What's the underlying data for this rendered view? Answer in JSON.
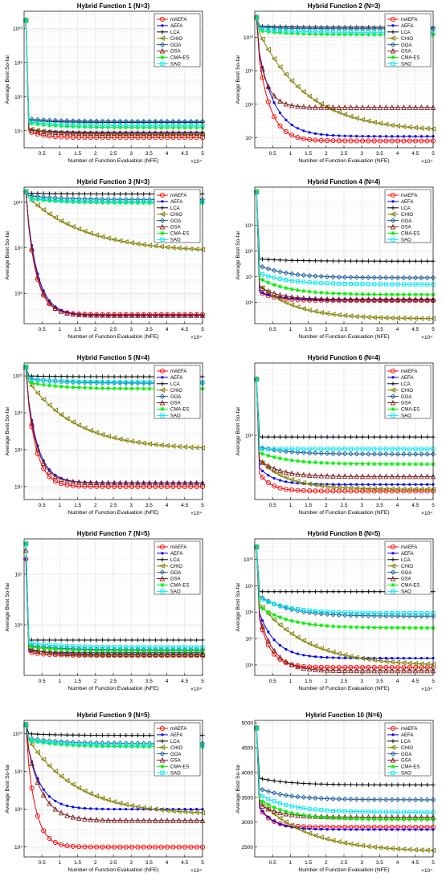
{
  "figure": {
    "algorithms": [
      {
        "name": "mAEFA",
        "color": "#ff0000",
        "marker": "circle"
      },
      {
        "name": "AEFA",
        "color": "#0000ff",
        "marker": "dot"
      },
      {
        "name": "LCA",
        "color": "#000000",
        "marker": "plus"
      },
      {
        "name": "CHIO",
        "color": "#808000",
        "marker": "triangle-left"
      },
      {
        "name": "GOA",
        "color": "#1f5f9f",
        "marker": "diamond"
      },
      {
        "name": "GSA",
        "color": "#7f1f1f",
        "marker": "triangle-up"
      },
      {
        "name": "CMA-ES",
        "color": "#00ee00",
        "marker": "star"
      },
      {
        "name": "SAO",
        "color": "#00e5ee",
        "marker": "square"
      }
    ],
    "xlabel": "Number of Function Evaluation (NFE)",
    "ylabel": "Average Best So-far",
    "x_exponent": "×10⁴",
    "x_ticks": [
      "0.5",
      "1",
      "1.5",
      "2",
      "2.5",
      "3",
      "3.5",
      "4",
      "4.5",
      "5"
    ]
  },
  "chart_data": [
    {
      "type": "line",
      "title": "Hybrid Function 1 (N=3)",
      "yscale": "log",
      "ylim": [
        1000.0,
        100000000000.0
      ],
      "y_ticks": [
        {
          "v": 10000.0,
          "label": "10⁴"
        },
        {
          "v": 1000000.0,
          "label": "10⁶"
        },
        {
          "v": 100000000.0,
          "label": "10⁸"
        },
        {
          "v": 10000000000.0,
          "label": "10¹⁰"
        }
      ],
      "series": [
        {
          "name": "mAEFA",
          "start": 30000000000.0,
          "early": 12000,
          "end": 4000,
          "rate": 2.2
        },
        {
          "name": "AEFA",
          "start": 30000000000.0,
          "early": 13000,
          "end": 8000,
          "rate": 1.5
        },
        {
          "name": "LCA",
          "start": 30000000000.0,
          "early": 40000,
          "end": 30000,
          "rate": 1.0
        },
        {
          "name": "CHIO",
          "start": 30000000000.0,
          "early": 15000,
          "end": 6000,
          "rate": 1.2
        },
        {
          "name": "GOA",
          "start": 30000000000.0,
          "early": 50000,
          "end": 35000,
          "rate": 1.0
        },
        {
          "name": "GSA",
          "start": 30000000000.0,
          "early": 12000,
          "end": 7000,
          "rate": 1.4
        },
        {
          "name": "CMA-ES",
          "start": 30000000000.0,
          "early": 30000,
          "end": 15000,
          "rate": 1.0
        },
        {
          "name": "SAO",
          "start": 30000000000.0,
          "early": 35000,
          "end": 20000,
          "rate": 1.0
        }
      ]
    },
    {
      "type": "line",
      "title": "Hybrid Function 2 (N=3)",
      "yscale": "log",
      "ylim": [
        5000000.0,
        60000000000.0
      ],
      "y_ticks": [
        {
          "v": 10000000.0,
          "label": "10⁷"
        },
        {
          "v": 100000000.0,
          "label": "10⁸"
        },
        {
          "v": 1000000000.0,
          "label": "10⁹"
        },
        {
          "v": 10000000000.0,
          "label": "10¹⁰"
        }
      ],
      "series": [
        {
          "name": "mAEFA",
          "start": 40000000000.0,
          "early": 9000000000.0,
          "end": 8000000.0,
          "rate": 2.4
        },
        {
          "name": "AEFA",
          "start": 40000000000.0,
          "early": 10000000000.0,
          "end": 11000000.0,
          "rate": 1.8
        },
        {
          "name": "LCA",
          "start": 40000000000.0,
          "early": 22000000000.0,
          "end": 20000000000.0,
          "rate": 1.0
        },
        {
          "name": "CHIO",
          "start": 40000000000.0,
          "early": 20000000000.0,
          "end": 15000000.0,
          "rate": 0.6
        },
        {
          "name": "GOA",
          "start": 40000000000.0,
          "early": 20000000000.0,
          "end": 18000000000.0,
          "rate": 1.0
        },
        {
          "name": "GSA",
          "start": 40000000000.0,
          "early": 10000000000.0,
          "end": 80000000.0,
          "rate": 3.0
        },
        {
          "name": "CMA-ES",
          "start": 40000000000.0,
          "early": 16000000000.0,
          "end": 12000000000.0,
          "rate": 1.0
        },
        {
          "name": "SAO",
          "start": 40000000000.0,
          "early": 18000000000.0,
          "end": 14000000000.0,
          "rate": 1.0
        }
      ]
    },
    {
      "type": "line",
      "title": "Hybrid Function 3 (N=3)",
      "yscale": "log",
      "ylim": [
        10000.0,
        10000000000000.0
      ],
      "y_ticks": [
        {
          "v": 1000000.0,
          "label": "10⁶"
        },
        {
          "v": 1000000000.0,
          "label": "10⁹"
        },
        {
          "v": 1000000000000.0,
          "label": "10¹²"
        }
      ],
      "series": [
        {
          "name": "mAEFA",
          "start": 5000000000000.0,
          "early": 2000000000000.0,
          "end": 40000.0,
          "rate": 3.0
        },
        {
          "name": "AEFA",
          "start": 5000000000000.0,
          "early": 2000000000000.0,
          "end": 35000.0,
          "rate": 2.6
        },
        {
          "name": "LCA",
          "start": 5000000000000.0,
          "early": 4000000000000.0,
          "end": 3500000000000.0,
          "rate": 1.0
        },
        {
          "name": "CHIO",
          "start": 5000000000000.0,
          "early": 3000000000000.0,
          "end": 500000000.0,
          "rate": 0.5
        },
        {
          "name": "GOA",
          "start": 5000000000000.0,
          "early": 3000000000000.0,
          "end": 1500000000000.0,
          "rate": 1.0
        },
        {
          "name": "GSA",
          "start": 5000000000000.0,
          "early": 2000000000000.0,
          "end": 35000.0,
          "rate": 2.8
        },
        {
          "name": "CMA-ES",
          "start": 5000000000000.0,
          "early": 2000000000000.0,
          "end": 900000000000.0,
          "rate": 1.0
        },
        {
          "name": "SAO",
          "start": 5000000000000.0,
          "early": 2000000000000.0,
          "end": 1100000000000.0,
          "rate": 1.0
        }
      ]
    },
    {
      "type": "line",
      "title": "Hybrid Function 4 (N=4)",
      "yscale": "log",
      "ylim": [
        150000.0,
        30000000000.0
      ],
      "y_ticks": [
        {
          "v": 1000000.0,
          "label": "10⁶"
        },
        {
          "v": 10000000.0,
          "label": "10⁷"
        },
        {
          "v": 100000000.0,
          "label": "10⁸"
        },
        {
          "v": 1000000000.0,
          "label": "10⁹"
        }
      ],
      "series": [
        {
          "name": "mAEFA",
          "start": 20000000000.0,
          "early": 3000000.0,
          "end": 1200000.0,
          "rate": 2.0
        },
        {
          "name": "AEFA",
          "start": 20000000000.0,
          "early": 3000000.0,
          "end": 1300000.0,
          "rate": 1.8
        },
        {
          "name": "LCA",
          "start": 20000000000.0,
          "early": 50000000.0,
          "end": 40000000.0,
          "rate": 1.0
        },
        {
          "name": "CHIO",
          "start": 20000000000.0,
          "early": 6000000.0,
          "end": 230000.0,
          "rate": 0.8
        },
        {
          "name": "GOA",
          "start": 20000000000.0,
          "early": 30000000.0,
          "end": 9000000.0,
          "rate": 1.0
        },
        {
          "name": "GSA",
          "start": 20000000000.0,
          "early": 5000000.0,
          "end": 1300000.0,
          "rate": 1.5
        },
        {
          "name": "CMA-ES",
          "start": 20000000000.0,
          "early": 10000000.0,
          "end": 2000000.0,
          "rate": 1.0
        },
        {
          "name": "SAO",
          "start": 20000000000.0,
          "early": 15000000.0,
          "end": 5000000.0,
          "rate": 1.0
        }
      ]
    },
    {
      "type": "line",
      "title": "Hybrid Function 5 (N=4)",
      "yscale": "log",
      "ylim": [
        2000.0,
        50000000000.0
      ],
      "y_ticks": [
        {
          "v": 10000.0,
          "label": "10⁴"
        },
        {
          "v": 1000000.0,
          "label": "10⁶"
        },
        {
          "v": 100000000.0,
          "label": "10⁸"
        },
        {
          "v": 10000000000.0,
          "label": "10¹⁰"
        }
      ],
      "series": [
        {
          "name": "mAEFA",
          "start": 30000000000.0,
          "early": 8000000000.0,
          "end": 10000.0,
          "rate": 3.0
        },
        {
          "name": "AEFA",
          "start": 30000000000.0,
          "early": 8000000000.0,
          "end": 16000.0,
          "rate": 2.6
        },
        {
          "name": "LCA",
          "start": 30000000000.0,
          "early": 10000000000.0,
          "end": 9000000000.0,
          "rate": 1.0
        },
        {
          "name": "CHIO",
          "start": 30000000000.0,
          "early": 8000000000.0,
          "end": 1000000.0,
          "rate": 0.6
        },
        {
          "name": "GOA",
          "start": 30000000000.0,
          "early": 8000000000.0,
          "end": 4000000000.0,
          "rate": 1.0
        },
        {
          "name": "GSA",
          "start": 30000000000.0,
          "early": 8000000000.0,
          "end": 16000.0,
          "rate": 2.8
        },
        {
          "name": "CMA-ES",
          "start": 30000000000.0,
          "early": 5000000000.0,
          "end": 2000000000.0,
          "rate": 1.0
        },
        {
          "name": "SAO",
          "start": 30000000000.0,
          "early": 7000000000.0,
          "end": 4500000000.0,
          "rate": 1.0
        }
      ]
    },
    {
      "type": "line",
      "title": "Hybrid Function 6 (N=4)",
      "yscale": "log",
      "ylim": [
        1300.0,
        100000.0
      ],
      "y_ticks": [
        {
          "v": 10000.0,
          "label": "10⁴"
        }
      ],
      "series": [
        {
          "name": "mAEFA",
          "start": 60000.0,
          "early": 3500,
          "end": 1700,
          "rate": 2.5
        },
        {
          "name": "AEFA",
          "start": 60000.0,
          "early": 4000,
          "end": 2100,
          "rate": 2.0
        },
        {
          "name": "LCA",
          "start": 60000.0,
          "early": 9500,
          "end": 9500,
          "rate": 1.0
        },
        {
          "name": "CHIO",
          "start": 60000.0,
          "early": 5000,
          "end": 1800,
          "rate": 1.0
        },
        {
          "name": "GOA",
          "start": 60000.0,
          "early": 7000,
          "end": 5500,
          "rate": 1.0
        },
        {
          "name": "GSA",
          "start": 60000.0,
          "early": 5000,
          "end": 2700,
          "rate": 1.5
        },
        {
          "name": "CMA-ES",
          "start": 60000.0,
          "early": 6000,
          "end": 4000,
          "rate": 1.0
        },
        {
          "name": "SAO",
          "start": 60000.0,
          "early": 6500,
          "end": 6500,
          "rate": 1.0
        }
      ]
    },
    {
      "type": "line",
      "title": "Hybrid Function 7 (N=5)",
      "yscale": "log",
      "ylim": [
        100000.0,
        50000000.0
      ],
      "y_ticks": [
        {
          "v": 1000000.0,
          "label": "10⁶"
        },
        {
          "v": 10000000.0,
          "label": "10⁷"
        }
      ],
      "series": [
        {
          "name": "mAEFA",
          "start": 20000000.0,
          "early": 300000.0,
          "end": 250000.0,
          "rate": 2.0
        },
        {
          "name": "AEFA",
          "start": 20000000.0,
          "early": 320000.0,
          "end": 280000.0,
          "rate": 1.8
        },
        {
          "name": "LCA",
          "start": 40000000.0,
          "early": 500000.0,
          "end": 500000.0,
          "rate": 1.0
        },
        {
          "name": "CHIO",
          "start": 40000000.0,
          "early": 350000.0,
          "end": 250000.0,
          "rate": 1.2
        },
        {
          "name": "GOA",
          "start": 40000000.0,
          "early": 400000.0,
          "end": 320000.0,
          "rate": 1.0
        },
        {
          "name": "GSA",
          "start": 30000000.0,
          "early": 350000.0,
          "end": 260000.0,
          "rate": 1.6
        },
        {
          "name": "CMA-ES",
          "start": 40000000.0,
          "early": 380000.0,
          "end": 300000.0,
          "rate": 1.0
        },
        {
          "name": "SAO",
          "start": 40000000.0,
          "early": 450000.0,
          "end": 360000.0,
          "rate": 1.0
        }
      ]
    },
    {
      "type": "line",
      "title": "Hybrid Function 8 (N=5)",
      "yscale": "log",
      "ylim": [
        400000.0,
        60000000000.0
      ],
      "y_ticks": [
        {
          "v": 1000000.0,
          "label": "10⁶"
        },
        {
          "v": 10000000.0,
          "label": "10⁷"
        },
        {
          "v": 100000000.0,
          "label": "10⁸"
        },
        {
          "v": 1000000000.0,
          "label": "10⁹"
        },
        {
          "v": 10000000000.0,
          "label": "10¹⁰"
        }
      ],
      "series": [
        {
          "name": "mAEFA",
          "start": 30000000000.0,
          "early": 200000000.0,
          "end": 800000.0,
          "rate": 2.6
        },
        {
          "name": "AEFA",
          "start": 30000000000.0,
          "early": 200000000.0,
          "end": 1800000.0,
          "rate": 1.8
        },
        {
          "name": "LCA",
          "start": 30000000000.0,
          "early": 600000000.0,
          "end": 600000000.0,
          "rate": 1.0
        },
        {
          "name": "CHIO",
          "start": 30000000000.0,
          "early": 300000000.0,
          "end": 900000.0,
          "rate": 0.6
        },
        {
          "name": "GOA",
          "start": 30000000000.0,
          "early": 500000000.0,
          "end": 70000000.0,
          "rate": 1.0
        },
        {
          "name": "GSA",
          "start": 30000000000.0,
          "early": 200000000.0,
          "end": 600000.0,
          "rate": 2.0
        },
        {
          "name": "CMA-ES",
          "start": 30000000000.0,
          "early": 200000000.0,
          "end": 25000000.0,
          "rate": 1.0
        },
        {
          "name": "SAO",
          "start": 30000000000.0,
          "early": 400000000.0,
          "end": 90000000.0,
          "rate": 1.0
        }
      ]
    },
    {
      "type": "line",
      "title": "Hybrid Function 9 (N=5)",
      "yscale": "log",
      "ylim": [
        3000.0,
        50000000000.0
      ],
      "y_ticks": [
        {
          "v": 10000.0,
          "label": "10⁴"
        },
        {
          "v": 1000000.0,
          "label": "10⁶"
        },
        {
          "v": 100000000.0,
          "label": "10⁸"
        },
        {
          "v": 10000000000.0,
          "label": "10¹⁰"
        }
      ],
      "series": [
        {
          "name": "mAEFA",
          "start": 30000000000.0,
          "early": 8000000000.0,
          "end": 10000.0,
          "rate": 3.2
        },
        {
          "name": "AEFA",
          "start": 30000000000.0,
          "early": 8000000000.0,
          "end": 1000000.0,
          "rate": 2.2
        },
        {
          "name": "LCA",
          "start": 30000000000.0,
          "early": 10000000000.0,
          "end": 8000000000.0,
          "rate": 1.0
        },
        {
          "name": "CHIO",
          "start": 30000000000.0,
          "early": 8000000000.0,
          "end": 500000.0,
          "rate": 0.6
        },
        {
          "name": "GOA",
          "start": 30000000000.0,
          "early": 6000000000.0,
          "end": 3000000000.0,
          "rate": 1.0
        },
        {
          "name": "GSA",
          "start": 30000000000.0,
          "early": 8000000000.0,
          "end": 250000.0,
          "rate": 2.0
        },
        {
          "name": "CMA-ES",
          "start": 30000000000.0,
          "early": 5000000000.0,
          "end": 2000000000.0,
          "rate": 1.0
        },
        {
          "name": "SAO",
          "start": 30000000000.0,
          "early": 5000000000.0,
          "end": 2500000000.0,
          "rate": 1.0
        }
      ]
    },
    {
      "type": "line",
      "title": "Hybrid Function 10 (N=6)",
      "yscale": "linear",
      "ylim": [
        2300,
        5050
      ],
      "y_ticks": [
        {
          "v": 2500,
          "label": "2500"
        },
        {
          "v": 3000,
          "label": "3000"
        },
        {
          "v": 3500,
          "label": "3500"
        },
        {
          "v": 4000,
          "label": "4000"
        },
        {
          "v": 4500,
          "label": "4500"
        },
        {
          "v": 5000,
          "label": "5000"
        }
      ],
      "series": [
        {
          "name": "mAEFA",
          "start": 4900,
          "early": 3400,
          "end": 2900,
          "rate": 2.5
        },
        {
          "name": "AEFA",
          "start": 4900,
          "early": 3400,
          "end": 2850,
          "rate": 2.0
        },
        {
          "name": "LCA",
          "start": 4900,
          "early": 3900,
          "end": 3750,
          "rate": 1.0
        },
        {
          "name": "CHIO",
          "start": 4900,
          "early": 3500,
          "end": 2400,
          "rate": 0.6
        },
        {
          "name": "GOA",
          "start": 4900,
          "early": 3700,
          "end": 3450,
          "rate": 1.0
        },
        {
          "name": "GSA",
          "start": 4900,
          "early": 3400,
          "end": 3100,
          "rate": 1.5
        },
        {
          "name": "CMA-ES",
          "start": 4900,
          "early": 3500,
          "end": 3050,
          "rate": 1.0
        },
        {
          "name": "SAO",
          "start": 4900,
          "early": 3600,
          "end": 3200,
          "rate": 1.0
        }
      ]
    }
  ]
}
